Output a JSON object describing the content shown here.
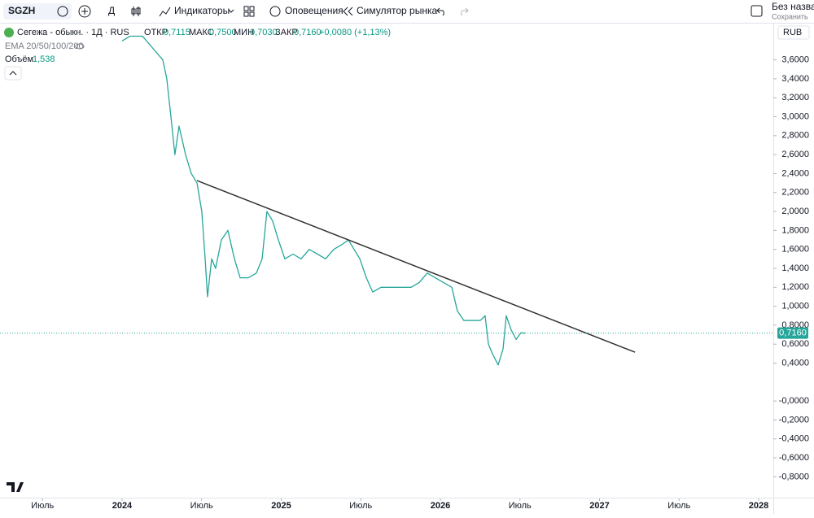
{
  "toolbar": {
    "symbol": "SGZH",
    "interval": "Д",
    "indicators": "Индикаторы",
    "alerts": "Оповещения",
    "replay": "Симулятор рынка",
    "layout_name": "Без названи",
    "save": "Сохранить"
  },
  "legend": {
    "instrument": "Сегежа - обыкн. · 1Д · RUS",
    "open_label": "ОТКР",
    "open": "0,7115",
    "high_label": "МАКС",
    "high": "0,7500",
    "low_label": "МИН",
    "low": "0,7030",
    "close_label": "ЗАКР",
    "close": "0,7160",
    "change": "+0,0080 (+1,13%)",
    "ema": "EMA 20/50/100/200",
    "volume_label": "Объём",
    "volume": "1,538"
  },
  "currency": "RUB",
  "chart_data": {
    "type": "line",
    "x": [
      2024.0,
      2024.051,
      2024.128,
      2024.179,
      2024.256,
      2024.281,
      2024.307,
      2024.332,
      2024.358,
      2024.399,
      2024.435,
      2024.471,
      2024.501,
      2024.522,
      2024.537,
      2024.563,
      2024.588,
      2024.624,
      2024.665,
      2024.706,
      2024.742,
      2024.793,
      2024.844,
      2024.88,
      2024.91,
      2024.946,
      2024.982,
      2025.023,
      2025.074,
      2025.125,
      2025.176,
      2025.228,
      2025.279,
      2025.33,
      2025.381,
      2025.422,
      2025.458,
      2025.494,
      2025.535,
      2025.575,
      2025.627,
      2025.688,
      2025.765,
      2025.816,
      2025.867,
      2025.918,
      2025.969,
      2026.02,
      2026.072,
      2026.107,
      2026.148,
      2026.199,
      2026.251,
      2026.281,
      2026.302,
      2026.327,
      2026.363,
      2026.394,
      2026.414,
      2026.445,
      2026.476,
      2026.506,
      2026.532
    ],
    "series": [
      {
        "name": "SGZH",
        "color": "#26a69a",
        "values": [
          3.8,
          3.85,
          3.85,
          3.75,
          3.6,
          3.4,
          3.0,
          2.6,
          2.9,
          2.6,
          2.4,
          2.3,
          2.0,
          1.5,
          1.1,
          1.5,
          1.4,
          1.7,
          1.8,
          1.5,
          1.3,
          1.3,
          1.35,
          1.5,
          2.0,
          1.9,
          1.7,
          1.5,
          1.55,
          1.5,
          1.6,
          1.55,
          1.5,
          1.6,
          1.65,
          1.7,
          1.6,
          1.5,
          1.3,
          1.15,
          1.2,
          1.2,
          1.2,
          1.2,
          1.25,
          1.35,
          1.3,
          1.25,
          1.2,
          0.95,
          0.85,
          0.85,
          0.85,
          0.9,
          0.6,
          0.5,
          0.38,
          0.55,
          0.9,
          0.75,
          0.65,
          0.72,
          0.716
        ]
      }
    ],
    "trendline": {
      "x": [
        2024.471,
        2027.223
      ],
      "values": [
        2.326,
        0.515
      ],
      "color": "#333333"
    },
    "last_price": {
      "value": 0.716,
      "label": "0,7160"
    },
    "xlim": [
      2023.233,
      2028.092
    ],
    "xticks": [
      {
        "value": 2023.5,
        "label": "Июль"
      },
      2024,
      {
        "value": 2024.5,
        "label": "Июль"
      },
      2025,
      {
        "value": 2025.5,
        "label": "Июль"
      },
      2026,
      {
        "value": 2026.5,
        "label": "Июль"
      },
      2027,
      {
        "value": 2027.5,
        "label": "Июль"
      },
      2028
    ],
    "ylim": [
      -0.9,
      4.0
    ],
    "yticks": [
      {
        "value": 3.6,
        "label": "3,6000"
      },
      {
        "value": 3.4,
        "label": "3,4000"
      },
      {
        "value": 3.2,
        "label": "3,2000"
      },
      {
        "value": 3.0,
        "label": "3,0000"
      },
      {
        "value": 2.8,
        "label": "2,8000"
      },
      {
        "value": 2.6,
        "label": "2,6000"
      },
      {
        "value": 2.4,
        "label": "2,4000"
      },
      {
        "value": 2.2,
        "label": "2,2000"
      },
      {
        "value": 2.0,
        "label": "2,0000"
      },
      {
        "value": 1.8,
        "label": "1,8000"
      },
      {
        "value": 1.6,
        "label": "1,6000"
      },
      {
        "value": 1.4,
        "label": "1,4000"
      },
      {
        "value": 1.2,
        "label": "1,2000"
      },
      {
        "value": 1.0,
        "label": "1,0000"
      },
      {
        "value": 0.8,
        "label": "0,8000"
      },
      {
        "value": 0.6,
        "label": "0,6000"
      },
      {
        "value": 0.4,
        "label": "0,4000"
      },
      {
        "value": 0,
        "label": "-0,0000"
      },
      {
        "value": -0.2,
        "label": "-0,2000"
      },
      {
        "value": -0.4,
        "label": "-0,4000"
      },
      {
        "value": -0.6,
        "label": "-0,6000"
      },
      {
        "value": -0.8,
        "label": "-0,8000"
      }
    ],
    "grid": false
  }
}
